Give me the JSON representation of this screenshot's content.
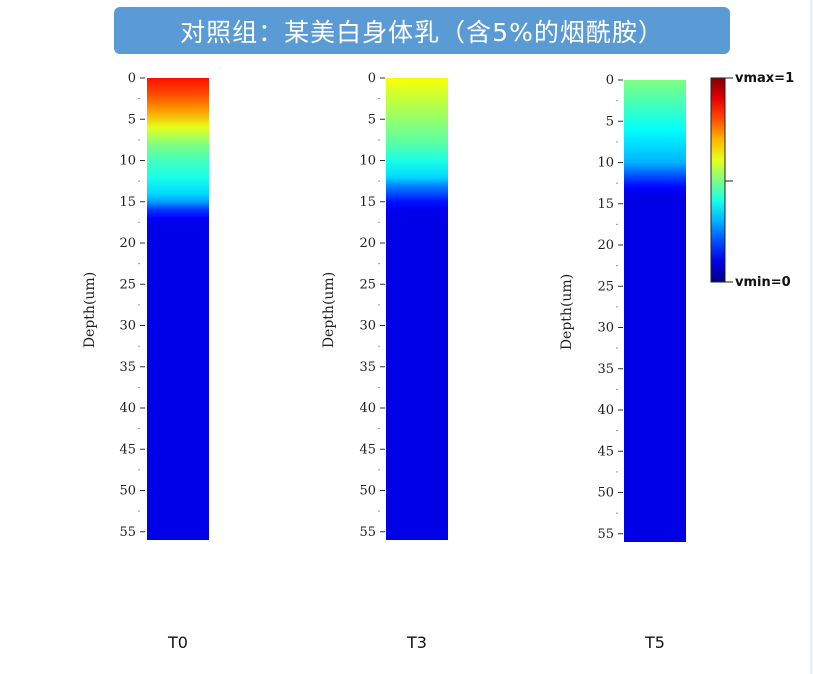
{
  "title": "对照组：某美白身体乳（含5%的烟酰胺）",
  "colors": {
    "banner": "#5b9bd5",
    "title_text": "#ffffff"
  },
  "chart_data": {
    "type": "heatmap",
    "colormap": "jet",
    "ylabel": "Depth(um)",
    "ylim": [
      0,
      56
    ],
    "y_ticks": [
      0,
      5,
      10,
      15,
      20,
      25,
      30,
      35,
      40,
      45,
      50,
      55
    ],
    "y_ticks_labels": [
      "0",
      "5",
      "10",
      "15",
      "20",
      "25",
      "30",
      "35",
      "40",
      "45",
      "50",
      "55"
    ],
    "colorbar": {
      "max_label": "vmax=1",
      "min_label": "vmin=0",
      "vmax": 1,
      "vmin": 0
    },
    "panels": [
      {
        "name": "T0",
        "depth": [
          0,
          2,
          4,
          6,
          8,
          10,
          12,
          14,
          15,
          16,
          17,
          18,
          56
        ],
        "intensity": [
          0.86,
          0.8,
          0.72,
          0.6,
          0.5,
          0.44,
          0.4,
          0.34,
          0.28,
          0.18,
          0.12,
          0.1,
          0.1
        ]
      },
      {
        "name": "T3",
        "depth": [
          0,
          2,
          4,
          6,
          8,
          10,
          12,
          13,
          14,
          15,
          16,
          17,
          56
        ],
        "intensity": [
          0.62,
          0.58,
          0.54,
          0.5,
          0.46,
          0.4,
          0.34,
          0.26,
          0.2,
          0.14,
          0.11,
          0.1,
          0.1
        ]
      },
      {
        "name": "T5",
        "depth": [
          0,
          2,
          4,
          6,
          8,
          10,
          11,
          12,
          13,
          14,
          56
        ],
        "intensity": [
          0.5,
          0.46,
          0.42,
          0.38,
          0.34,
          0.3,
          0.24,
          0.18,
          0.13,
          0.1,
          0.1
        ]
      }
    ]
  }
}
